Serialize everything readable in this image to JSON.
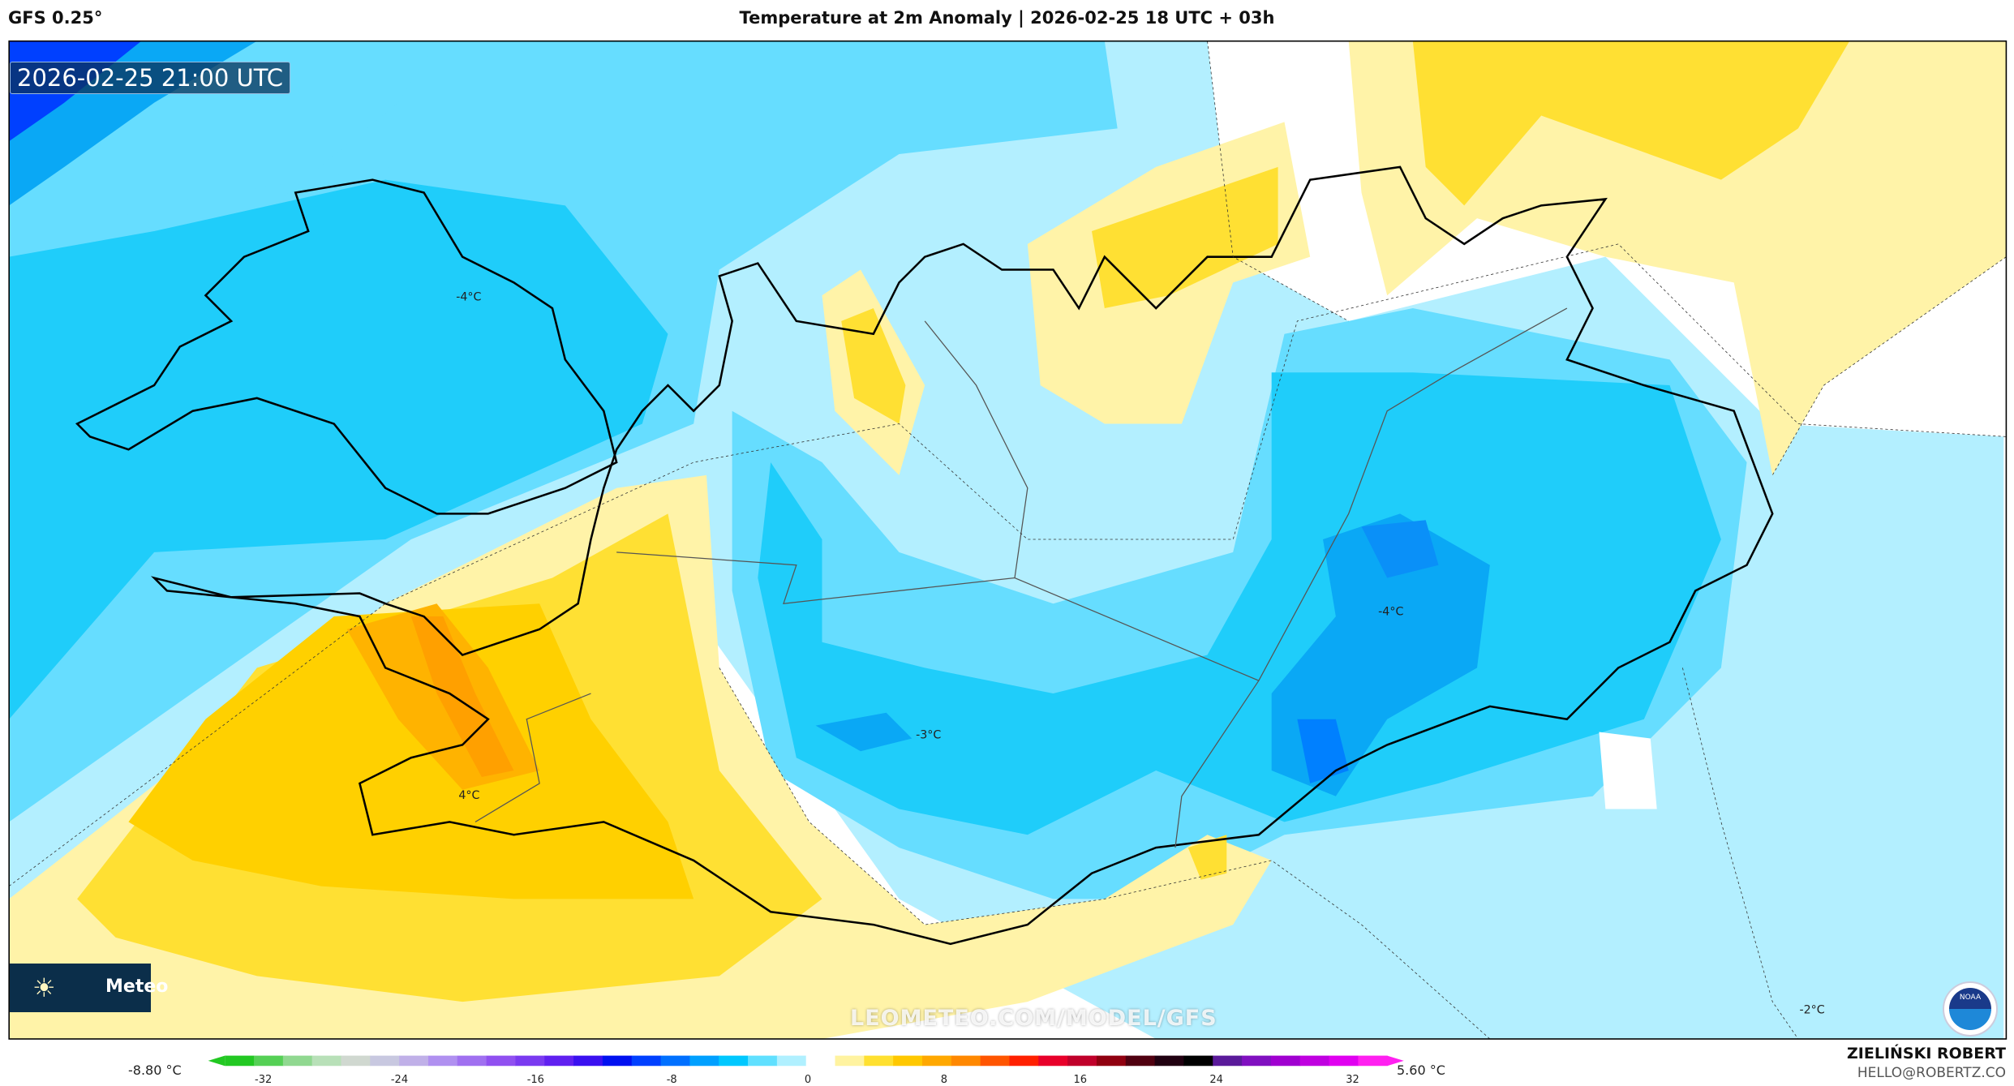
{
  "header": {
    "model": "GFS 0.25°",
    "title": "Temperature at 2m Anomaly | 2026-02-25 18 UTC + 03h"
  },
  "timestamp": "2026-02-25 21:00 UTC",
  "logo": {
    "text": "Meteo",
    "icon": "sun-icon"
  },
  "watermark": "LEOMETEO.COM/MODEL/GFS",
  "contour_labels": [
    {
      "text": "-4°C"
    },
    {
      "text": "-4°C"
    },
    {
      "text": "-3°C"
    },
    {
      "text": "4°C"
    },
    {
      "text": "-2°C"
    }
  ],
  "colorbar": {
    "min_label": "-8.80 °C",
    "max_label": "5.60 °C",
    "ticks": [
      "-32",
      "-24",
      "-16",
      "-8",
      "0",
      "8",
      "16",
      "24",
      "32"
    ],
    "colors": [
      "#22c822",
      "#55d055",
      "#90d890",
      "#b8e0b8",
      "#d0d8d0",
      "#c8c8e0",
      "#c0b0e8",
      "#b090f0",
      "#a070f0",
      "#9050f0",
      "#7a3af0",
      "#6020f0",
      "#3a10f0",
      "#0010f0",
      "#0040ff",
      "#0070ff",
      "#00a0ff",
      "#00c8ff",
      "#60e0ff",
      "#b0f0ff",
      "#ffffff",
      "#fff3a0",
      "#ffe030",
      "#ffc800",
      "#ffa800",
      "#ff8800",
      "#ff5500",
      "#ff2000",
      "#e8002a",
      "#c0002a",
      "#900010",
      "#500010",
      "#200010",
      "#000000",
      "#5a1a9a",
      "#8010c0",
      "#a000d0",
      "#c000e0",
      "#e000f0",
      "#ff20f0"
    ]
  },
  "author": {
    "name": "ZIELIŃSKI ROBERT",
    "email": "HELLO@ROBERTZ.CO"
  },
  "noaa_logo": "NOAA"
}
